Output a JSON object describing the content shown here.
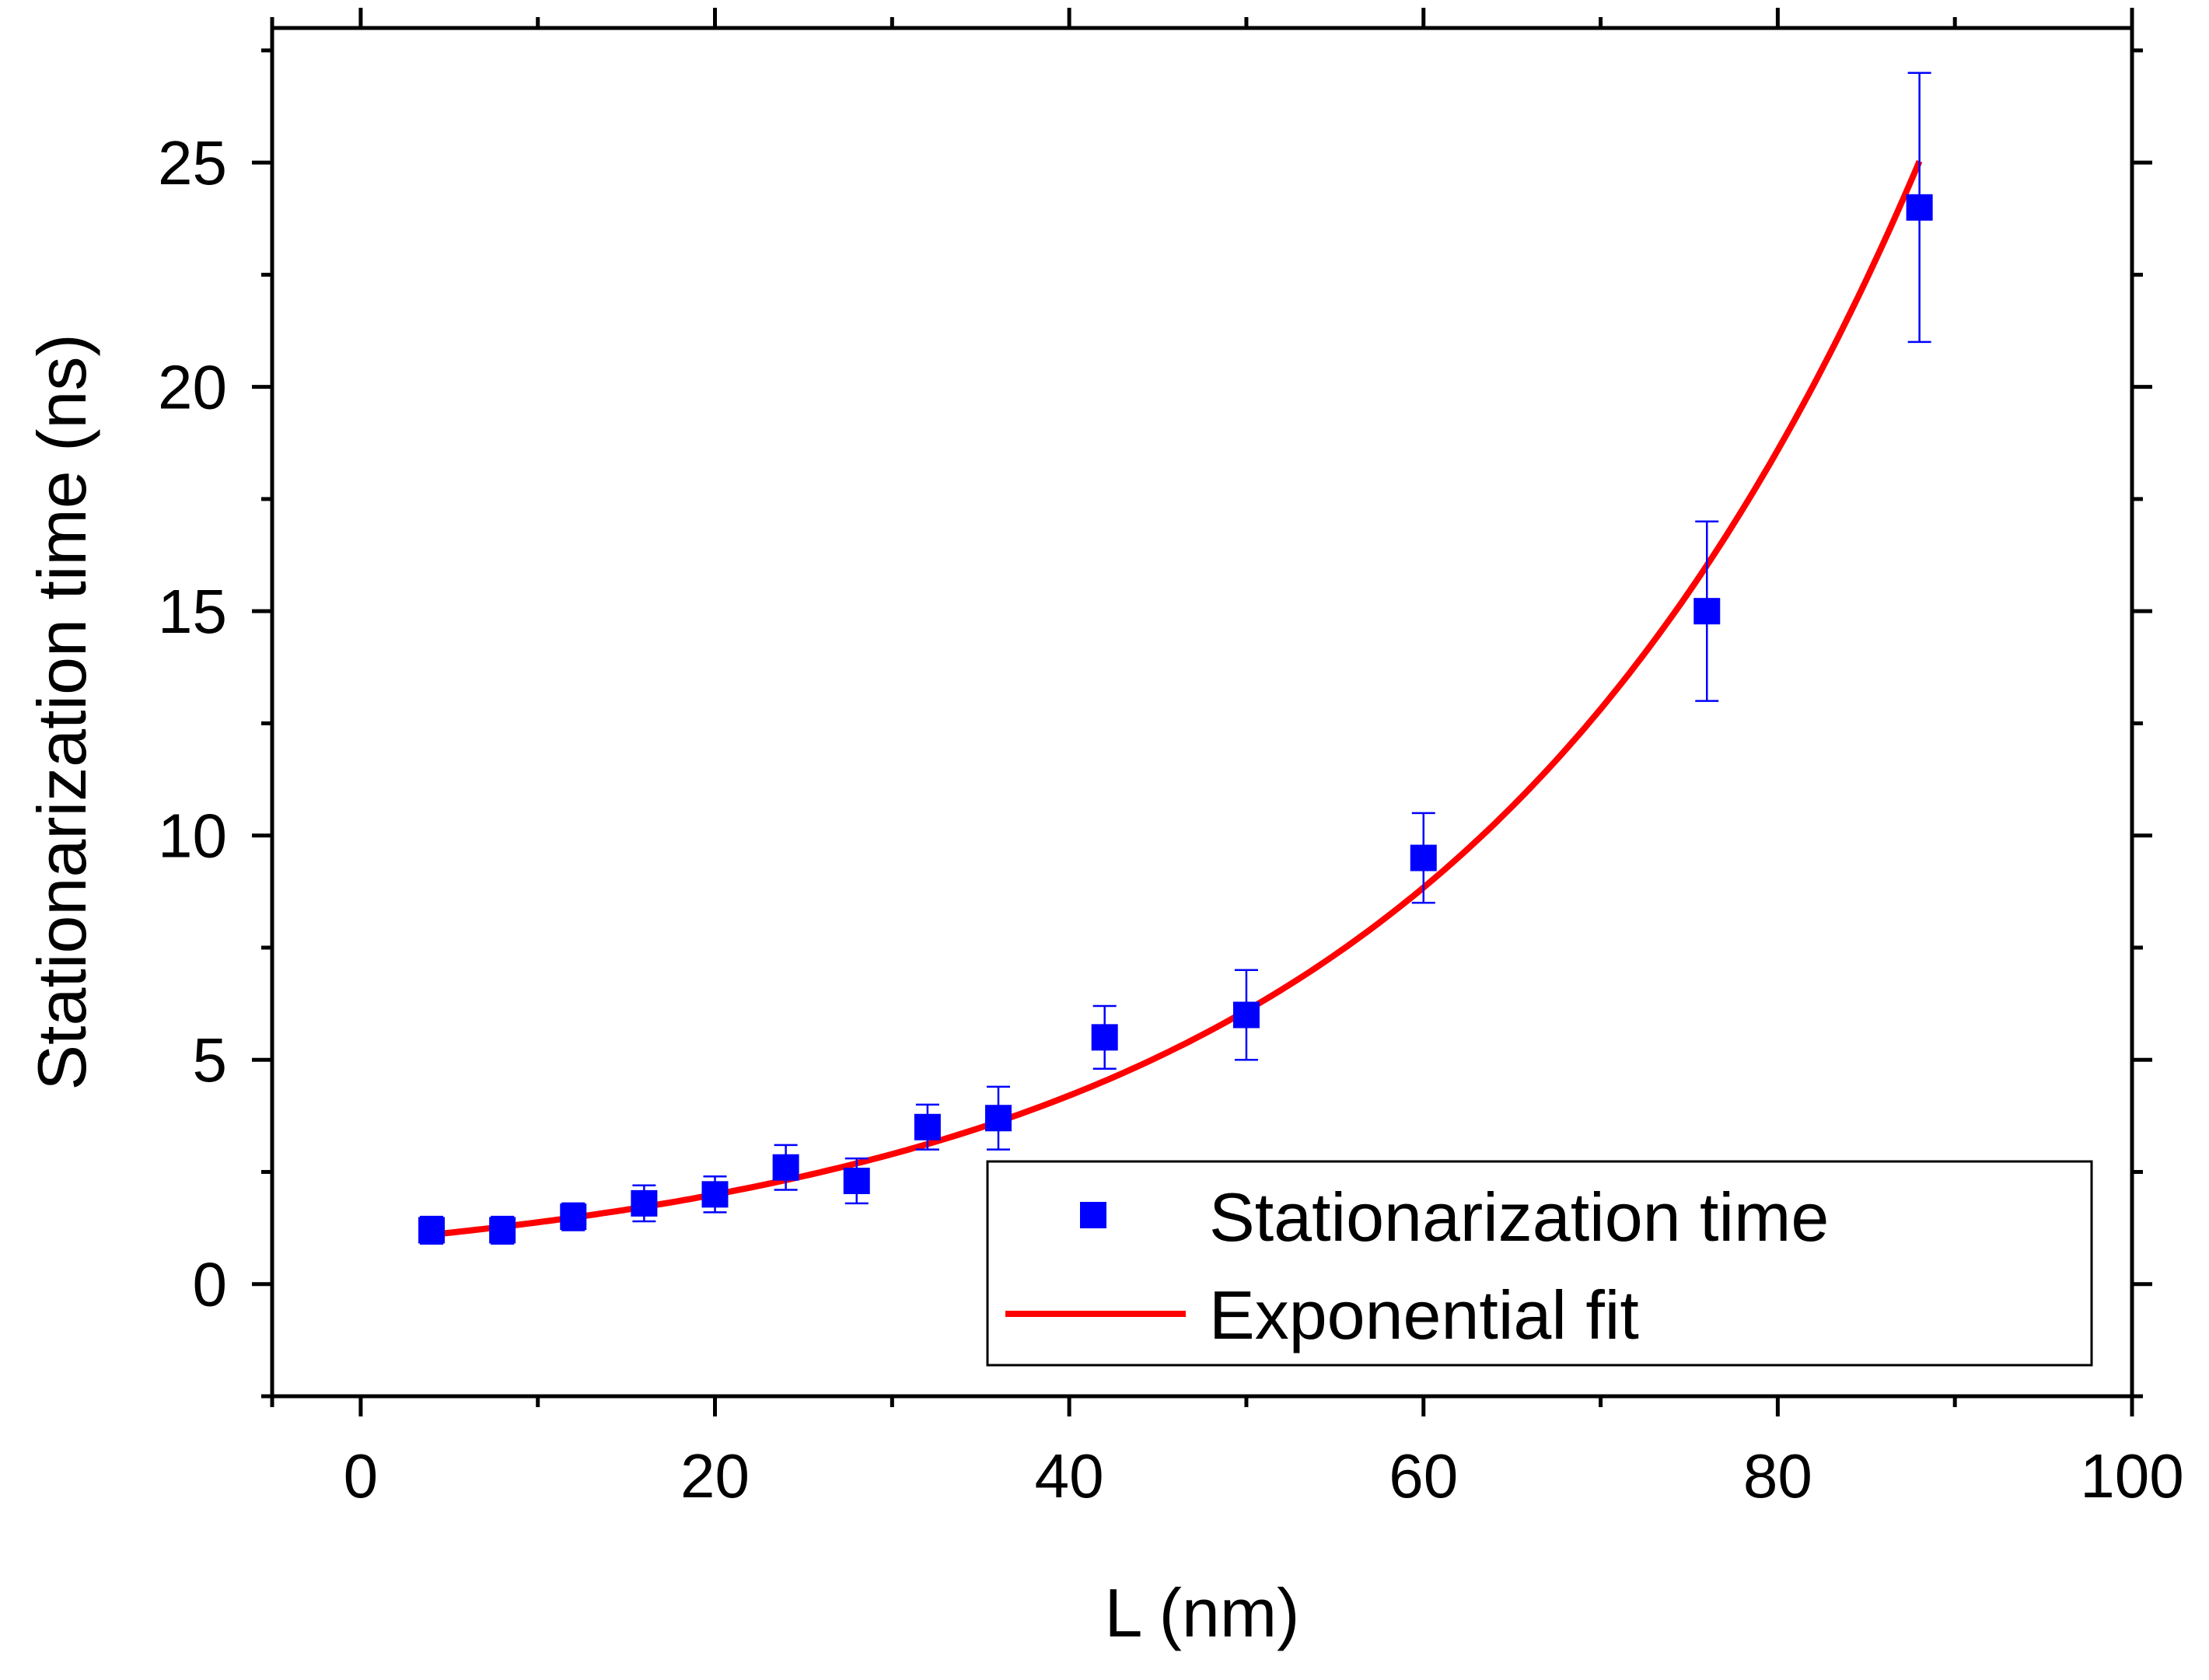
{
  "chart_data": {
    "type": "scatter",
    "title": "",
    "xlabel": "L (nm)",
    "ylabel": "Stationarization time (ns)",
    "xlim": [
      -5,
      100
    ],
    "ylim": [
      -2.5,
      28
    ],
    "x_ticks": [
      0,
      20,
      40,
      60,
      80,
      100
    ],
    "x_tick_labels": [
      "0",
      "20",
      "40",
      "60",
      "80",
      "100"
    ],
    "y_ticks": [
      0,
      5,
      10,
      15,
      20,
      25
    ],
    "y_tick_labels": [
      "0",
      "5",
      "10",
      "15",
      "20",
      "25"
    ],
    "x_minor_ticks": [
      -5,
      10,
      30,
      50,
      70,
      90
    ],
    "y_minor_ticks": [
      -2.5,
      2.5,
      7.5,
      12.5,
      17.5,
      22.5,
      27.5
    ],
    "grid": false,
    "legend_position": "bottom-right",
    "series": [
      {
        "name": "Stationarization time",
        "kind": "scatter",
        "marker": "square",
        "color": "#0000ff",
        "x": [
          4,
          8,
          12,
          16,
          20,
          24,
          28,
          32,
          36,
          42,
          50,
          60,
          76,
          88
        ],
        "y": [
          1.2,
          1.2,
          1.5,
          1.8,
          2.0,
          2.6,
          2.3,
          3.5,
          3.7,
          5.5,
          6.0,
          9.5,
          15.0,
          24.0
        ],
        "yerr": [
          0.3,
          0.3,
          0.3,
          0.4,
          0.4,
          0.5,
          0.5,
          0.5,
          0.7,
          0.7,
          1.0,
          1.0,
          2.0,
          3.0
        ]
      },
      {
        "name": "Exponential fit",
        "kind": "line",
        "color": "#ff0000",
        "model": "y = a * exp(x / t)",
        "a": 0.95,
        "t": 26.9,
        "x_range": [
          4,
          88
        ]
      }
    ]
  }
}
